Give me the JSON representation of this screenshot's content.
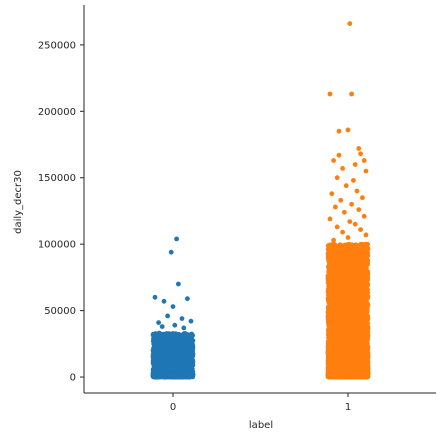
{
  "chart_data": {
    "type": "scatter",
    "subtype": "strip",
    "title": "",
    "xlabel": "label",
    "ylabel": "daily_decr30",
    "x_categories": [
      "0",
      "1"
    ],
    "ylim": [
      -12000,
      280000
    ],
    "y_ticks": [
      0,
      50000,
      100000,
      150000,
      200000,
      250000
    ],
    "y_tick_labels": [
      "0",
      "50000",
      "100000",
      "150000",
      "200000",
      "250000"
    ],
    "grid": false,
    "legend": "none",
    "spines": [
      "left",
      "bottom"
    ],
    "series": [
      {
        "category": "0",
        "color": "#1f77b4",
        "dense_max": 33000,
        "dense_count": 1400,
        "outliers": [
          [
            0.02,
            104000
          ],
          [
            -0.01,
            94000
          ],
          [
            0.03,
            70000
          ],
          [
            -0.1,
            60000
          ],
          [
            0.08,
            59000
          ],
          [
            -0.05,
            57000
          ],
          [
            0.0,
            53000
          ],
          [
            -0.03,
            46000
          ],
          [
            0.05,
            44000
          ],
          [
            0.1,
            42000
          ],
          [
            -0.08,
            41000
          ],
          [
            0.01,
            39000
          ],
          [
            0.06,
            37000
          ],
          [
            -0.06,
            38000
          ]
        ]
      },
      {
        "category": "1",
        "color": "#ff7f0e",
        "dense_max": 100000,
        "dense_count": 5500,
        "outliers": [
          [
            0.01,
            266000
          ],
          [
            -0.1,
            213000
          ],
          [
            0.02,
            213000
          ],
          [
            -0.05,
            185000
          ],
          [
            0.0,
            186000
          ],
          [
            0.06,
            172000
          ],
          [
            0.07,
            168000
          ],
          [
            0.09,
            163000
          ],
          [
            -0.05,
            167000
          ],
          [
            -0.08,
            163000
          ],
          [
            0.04,
            160000
          ],
          [
            -0.03,
            157000
          ],
          [
            0.1,
            155000
          ],
          [
            -0.06,
            150000
          ],
          [
            0.03,
            148000
          ],
          [
            -0.01,
            144000
          ],
          [
            0.05,
            140000
          ],
          [
            -0.09,
            138000
          ],
          [
            0.08,
            135000
          ],
          [
            -0.04,
            133000
          ],
          [
            0.02,
            130000
          ],
          [
            -0.07,
            128000
          ],
          [
            0.06,
            126000
          ],
          [
            -0.02,
            124000
          ],
          [
            0.09,
            121000
          ],
          [
            -0.1,
            119000
          ],
          [
            0.01,
            117000
          ],
          [
            0.04,
            115000
          ],
          [
            -0.06,
            113000
          ],
          [
            0.07,
            111000
          ],
          [
            -0.03,
            109000
          ],
          [
            0.1,
            107000
          ],
          [
            0.0,
            105000
          ],
          [
            -0.08,
            103000
          ]
        ]
      }
    ]
  }
}
